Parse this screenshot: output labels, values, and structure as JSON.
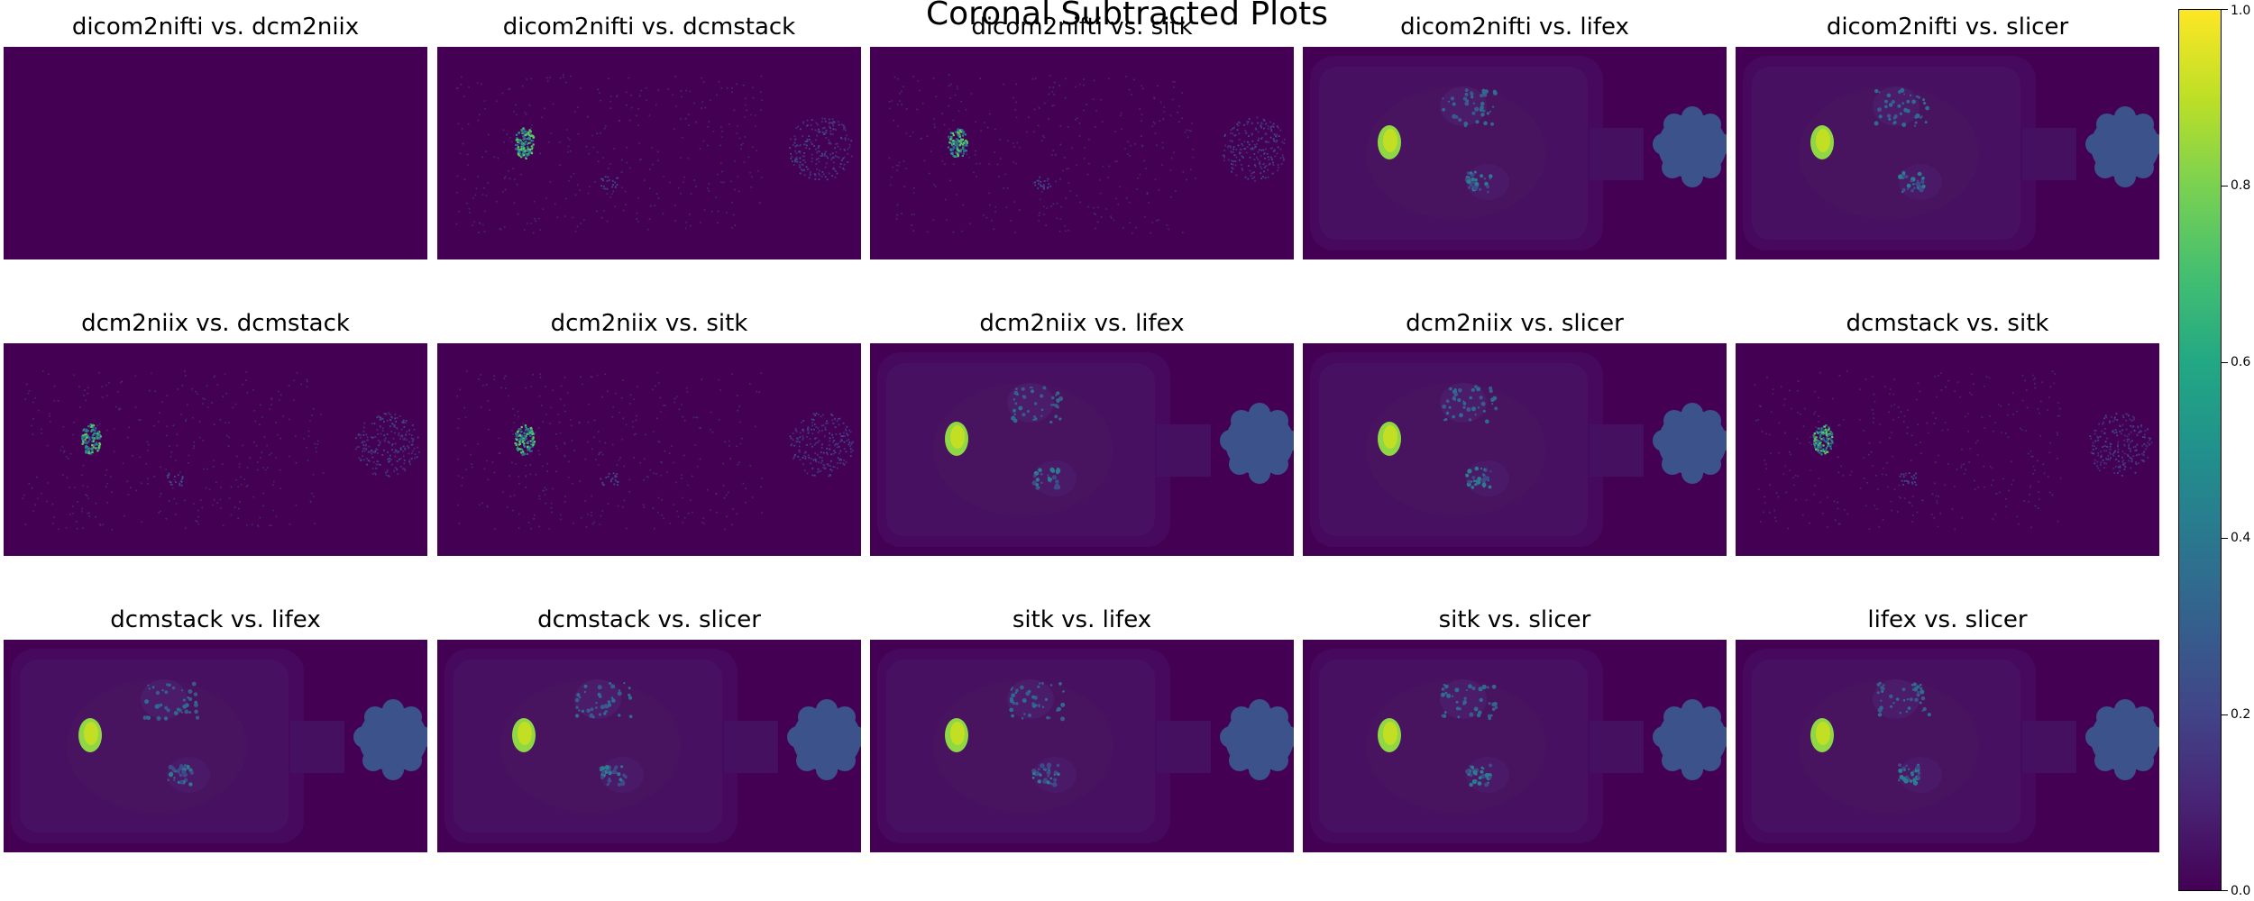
{
  "chart_data": {
    "type": "heatmap",
    "title": "Coronal Subtracted Plots",
    "grid": false,
    "panels": [
      {
        "title": "dicom2nifti vs. dcm2niix",
        "pattern": "blank"
      },
      {
        "title": "dicom2nifti vs. dcmstack",
        "pattern": "noise"
      },
      {
        "title": "dicom2nifti vs. sitk",
        "pattern": "noise"
      },
      {
        "title": "dicom2nifti vs. lifex",
        "pattern": "anatomy"
      },
      {
        "title": "dicom2nifti vs. slicer",
        "pattern": "anatomy"
      },
      {
        "title": "dcm2niix vs. dcmstack",
        "pattern": "noise"
      },
      {
        "title": "dcm2niix vs. sitk",
        "pattern": "noise"
      },
      {
        "title": "dcm2niix vs. lifex",
        "pattern": "anatomy"
      },
      {
        "title": "dcm2niix vs. slicer",
        "pattern": "anatomy"
      },
      {
        "title": "dcmstack vs. sitk",
        "pattern": "noise"
      },
      {
        "title": "dcmstack vs. lifex",
        "pattern": "anatomy"
      },
      {
        "title": "dcmstack vs. slicer",
        "pattern": "anatomy"
      },
      {
        "title": "sitk vs. lifex",
        "pattern": "anatomy"
      },
      {
        "title": "sitk vs. slicer",
        "pattern": "anatomy"
      },
      {
        "title": "lifex vs. slicer",
        "pattern": "anatomy"
      }
    ],
    "colorbar": {
      "range": [
        0.0,
        1.0
      ],
      "ticks": [
        "0.0",
        "0.2",
        "0.4",
        "0.6",
        "0.8",
        "1.0"
      ],
      "colormap": "viridis"
    }
  }
}
